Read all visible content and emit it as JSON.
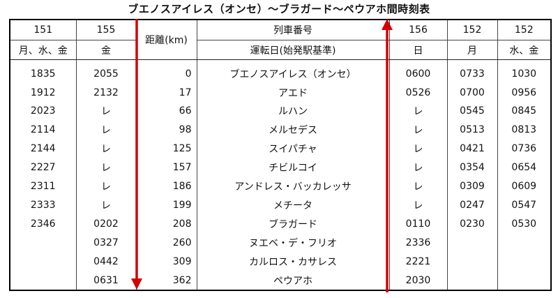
{
  "title": "ブエノスアイレス（オンセ）～ブラガード～ペウアホ間時刻表",
  "header": {
    "train_no_label": "列車番号",
    "days_label": "運転日(始発駅基準)",
    "distance_label": "距離(km)",
    "trains": [
      {
        "no": "151",
        "days": "月、水、金"
      },
      {
        "no": "155",
        "days": "金"
      },
      {
        "no": "156",
        "days": "日"
      },
      {
        "no": "152",
        "days": "月"
      },
      {
        "no": "152",
        "days": "水、金"
      }
    ]
  },
  "rows": [
    {
      "t151": "1835",
      "t155": "2055",
      "km": "0",
      "station": "ブエノスアイレス（オンセ）",
      "t156": "0600",
      "t152a": "0733",
      "t152b": "1030"
    },
    {
      "t151": "1912",
      "t155": "2132",
      "km": "17",
      "station": "アエド",
      "t156": "0526",
      "t152a": "0700",
      "t152b": "0956"
    },
    {
      "t151": "2023",
      "t155": "レ",
      "km": "66",
      "station": "ルハン",
      "t156": "レ",
      "t152a": "0545",
      "t152b": "0845"
    },
    {
      "t151": "2114",
      "t155": "レ",
      "km": "98",
      "station": "メルセデス",
      "t156": "レ",
      "t152a": "0513",
      "t152b": "0813"
    },
    {
      "t151": "2144",
      "t155": "レ",
      "km": "125",
      "station": "スイパチャ",
      "t156": "レ",
      "t152a": "0421",
      "t152b": "0736"
    },
    {
      "t151": "2227",
      "t155": "レ",
      "km": "157",
      "station": "チビルコイ",
      "t156": "レ",
      "t152a": "0354",
      "t152b": "0654"
    },
    {
      "t151": "2311",
      "t155": "レ",
      "km": "186",
      "station": "アンドレス・バッカレッサ",
      "t156": "レ",
      "t152a": "0309",
      "t152b": "0609"
    },
    {
      "t151": "2333",
      "t155": "レ",
      "km": "199",
      "station": "メチータ",
      "t156": "レ",
      "t152a": "0247",
      "t152b": "0547"
    },
    {
      "t151": "2346",
      "t155": "0202",
      "km": "208",
      "station": "ブラガード",
      "t156": "0110",
      "t152a": "0230",
      "t152b": "0530"
    },
    {
      "t151": "",
      "t155": "0327",
      "km": "260",
      "station": "ヌエベ・デ・フリオ",
      "t156": "2336",
      "t152a": "",
      "t152b": ""
    },
    {
      "t151": "",
      "t155": "0442",
      "km": "309",
      "station": "カルロス・カサレス",
      "t156": "2221",
      "t152a": "",
      "t152b": ""
    },
    {
      "t151": "",
      "t155": "0631",
      "km": "362",
      "station": "ペウアホ",
      "t156": "2030",
      "t152a": "",
      "t152b": ""
    }
  ],
  "colors": {
    "arrow": "#d40000"
  }
}
